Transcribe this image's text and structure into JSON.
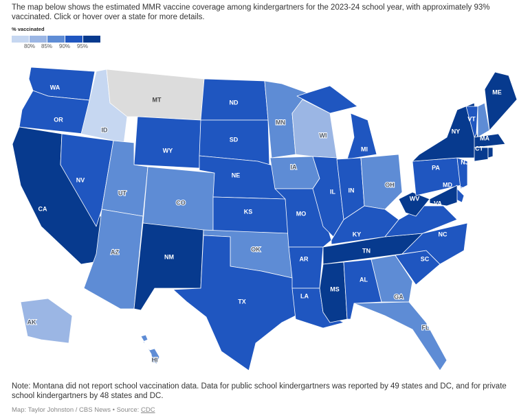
{
  "intro": "The map below shows the estimated MMR vaccine coverage among kindergartners for the 2023-24 school year, with approximately 93% vaccinated. Click or hover over a state for more details.",
  "legend": {
    "title": "% vaccinated",
    "colors": [
      "#c6d7f1",
      "#9bb6e4",
      "#5e8cd5",
      "#1f56c0",
      "#073a8e"
    ],
    "ticks": [
      "80%",
      "85%",
      "90%",
      "95%"
    ],
    "no_data_color": "#dcdcdc"
  },
  "states": [
    {
      "code": "WA",
      "bin": 3
    },
    {
      "code": "OR",
      "bin": 3
    },
    {
      "code": "CA",
      "bin": 4
    },
    {
      "code": "NV",
      "bin": 3
    },
    {
      "code": "ID",
      "bin": 0
    },
    {
      "code": "MT",
      "bin": null
    },
    {
      "code": "WY",
      "bin": 3
    },
    {
      "code": "UT",
      "bin": 2
    },
    {
      "code": "AZ",
      "bin": 2
    },
    {
      "code": "CO",
      "bin": 2
    },
    {
      "code": "NM",
      "bin": 4
    },
    {
      "code": "ND",
      "bin": 3
    },
    {
      "code": "SD",
      "bin": 3
    },
    {
      "code": "NE",
      "bin": 3
    },
    {
      "code": "KS",
      "bin": 3
    },
    {
      "code": "OK",
      "bin": 2
    },
    {
      "code": "TX",
      "bin": 3
    },
    {
      "code": "MN",
      "bin": 2
    },
    {
      "code": "IA",
      "bin": 2
    },
    {
      "code": "MO",
      "bin": 3
    },
    {
      "code": "AR",
      "bin": 3
    },
    {
      "code": "LA",
      "bin": 3
    },
    {
      "code": "WI",
      "bin": 1
    },
    {
      "code": "IL",
      "bin": 3
    },
    {
      "code": "MI",
      "bin": 3
    },
    {
      "code": "IN",
      "bin": 3
    },
    {
      "code": "OH",
      "bin": 2
    },
    {
      "code": "KY",
      "bin": 3
    },
    {
      "code": "TN",
      "bin": 4
    },
    {
      "code": "MS",
      "bin": 4
    },
    {
      "code": "AL",
      "bin": 3
    },
    {
      "code": "GA",
      "bin": 2
    },
    {
      "code": "FL",
      "bin": 2
    },
    {
      "code": "SC",
      "bin": 3
    },
    {
      "code": "NC",
      "bin": 3
    },
    {
      "code": "VA",
      "bin": 3
    },
    {
      "code": "WV",
      "bin": 4
    },
    {
      "code": "PA",
      "bin": 3
    },
    {
      "code": "NY",
      "bin": 4
    },
    {
      "code": "VT",
      "bin": 3
    },
    {
      "code": "NH",
      "bin": 2
    },
    {
      "code": "ME",
      "bin": 4
    },
    {
      "code": "MA",
      "bin": 4
    },
    {
      "code": "CT",
      "bin": 4
    },
    {
      "code": "RI",
      "bin": 4
    },
    {
      "code": "NJ",
      "bin": 3
    },
    {
      "code": "DE",
      "bin": 3
    },
    {
      "code": "MD",
      "bin": 4
    },
    {
      "code": "AK",
      "bin": 1
    },
    {
      "code": "HI",
      "bin": 2
    }
  ],
  "note": "Note: Montana did not report school vaccination data. Data for public school kindergartners was reported by 49 states and DC, and for private school kindergartners by 48 states and DC.",
  "credit": {
    "prefix": "Map: Taylor Johnston / CBS News • Source: ",
    "source_link": "CDC"
  }
}
